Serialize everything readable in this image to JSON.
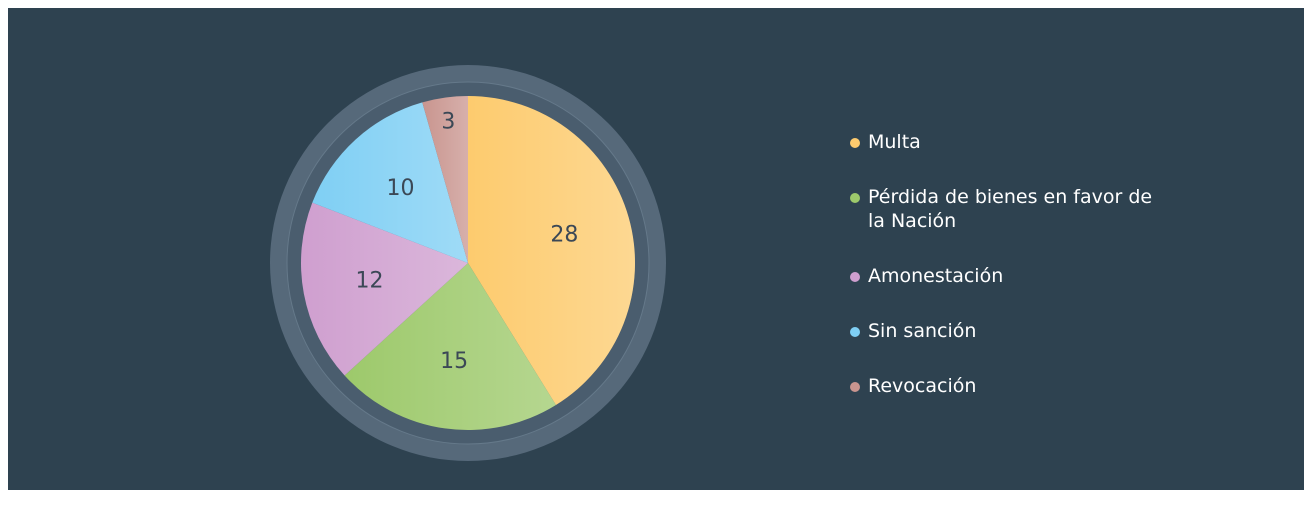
{
  "chart_data": {
    "type": "pie",
    "categories": [
      "Multa",
      "Pérdida de bienes en favor de la Nación",
      "Amonestación",
      "Sin sanción",
      "Revocación"
    ],
    "values": [
      28,
      15,
      12,
      10,
      3
    ],
    "colors": [
      "#fdcb6e",
      "#9dc96b",
      "#cf9fcf",
      "#7fcff4",
      "#c9958f"
    ]
  }
}
